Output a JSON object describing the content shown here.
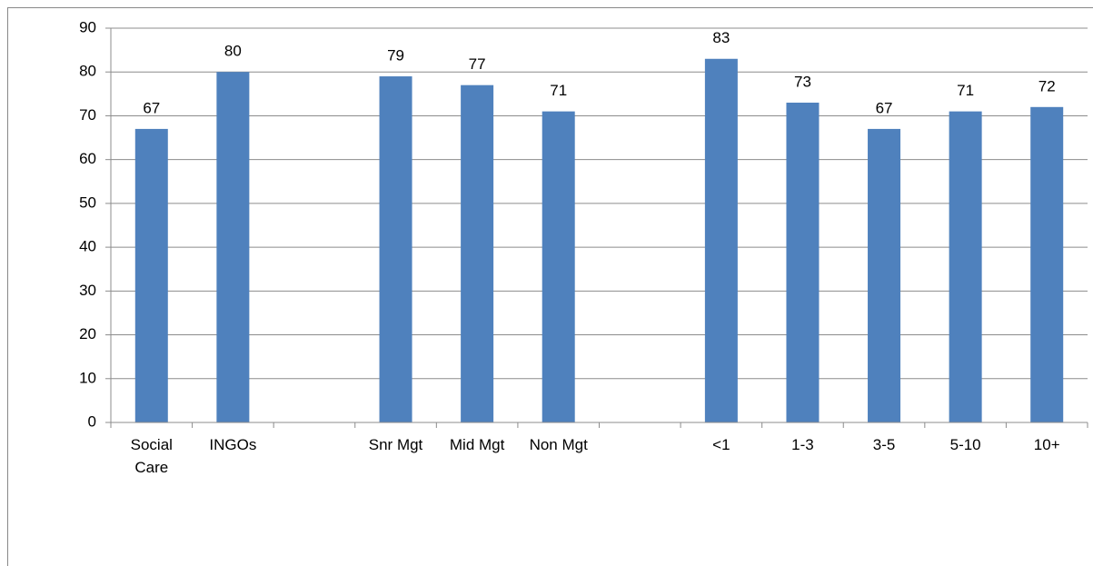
{
  "chart_data": {
    "type": "bar",
    "categories": [
      "Social Care",
      "INGOs",
      null,
      "Snr Mgt",
      "Mid Mgt",
      "Non Mgt",
      null,
      "<1",
      "1-3",
      "3-5",
      "5-10",
      "10+"
    ],
    "values": [
      67,
      80,
      null,
      79,
      77,
      71,
      null,
      83,
      73,
      67,
      71,
      72
    ],
    "color": "#4f81bd",
    "ylim": [
      0,
      90
    ],
    "yticks": [
      0,
      10,
      20,
      30,
      40,
      50,
      60,
      70,
      80,
      90
    ],
    "grid": true
  }
}
